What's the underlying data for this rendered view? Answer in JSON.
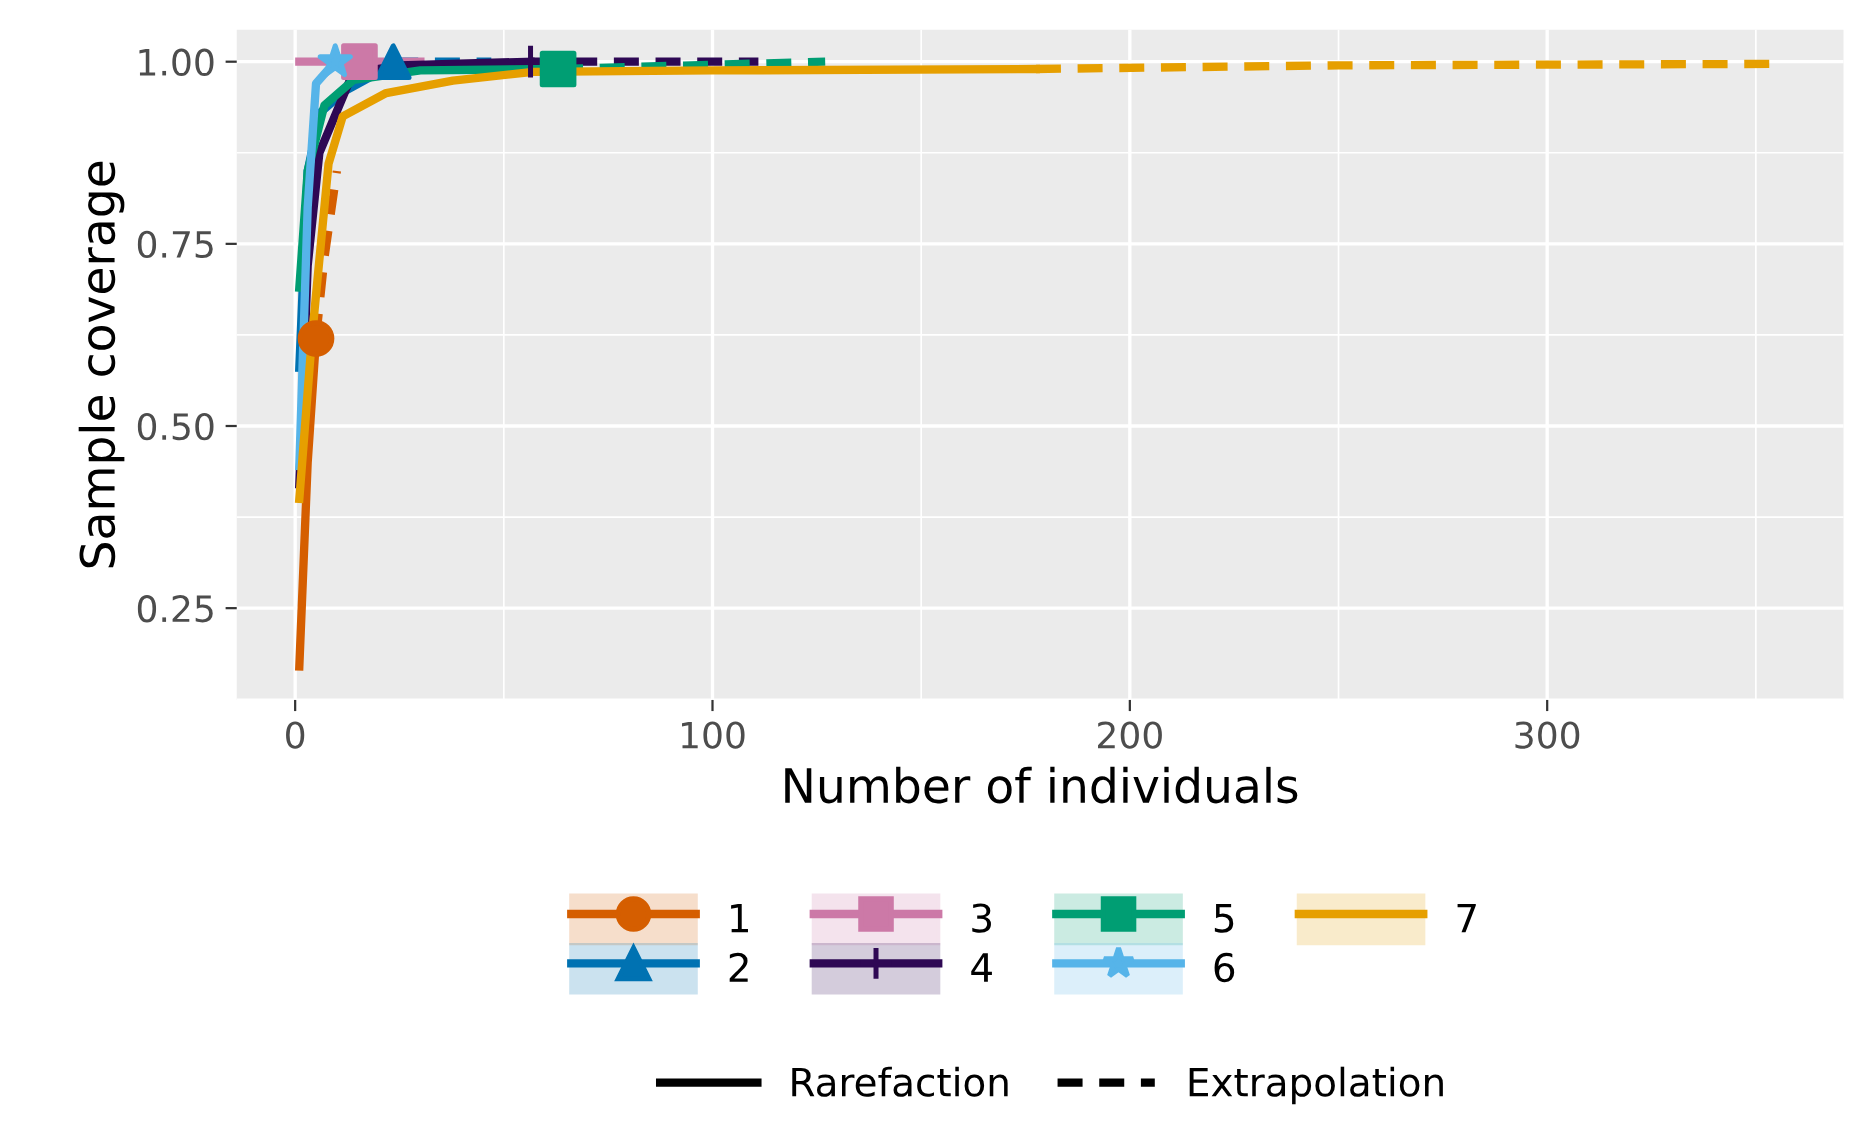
{
  "chart_data": {
    "type": "line",
    "xlabel": "Number of individuals",
    "ylabel": "Sample coverage",
    "xlim": [
      -14,
      371
    ],
    "ylim": [
      0.124,
      1.044
    ],
    "xticks": [
      0,
      100,
      200,
      300
    ],
    "yticks": [
      0.25,
      {
        "value": 0.5,
        "label": "0.50"
      },
      0.75,
      {
        "value": 1.0,
        "label": "1.00"
      }
    ],
    "grid": true,
    "legend": "bottom",
    "series": [
      {
        "name": "1",
        "color": "#D55E00",
        "line_style": "solid",
        "x": [
          1,
          3,
          5
        ],
        "values": [
          0.17,
          0.45,
          0.62
        ]
      },
      {
        "type": "scatter",
        "color": "#D55E00",
        "marker": "circle",
        "x": [
          5
        ],
        "values": [
          0.62
        ]
      },
      {
        "color": "#D55E00",
        "line_style": "dashed",
        "x": [
          5,
          7,
          10
        ],
        "values": [
          0.62,
          0.73,
          0.85
        ]
      },
      {
        "name": "2",
        "color": "#0072B2",
        "line_style": "solid",
        "x": [
          1,
          3,
          6,
          12,
          20,
          23.5
        ],
        "values": [
          0.58,
          0.85,
          0.93,
          0.96,
          0.985,
          1.0
        ]
      },
      {
        "type": "scatter",
        "color": "#0072B2",
        "marker": "triangle",
        "x": [
          23.5
        ],
        "values": [
          1.0
        ]
      },
      {
        "color": "#0072B2",
        "line_style": "dashed",
        "x": [
          23.5,
          47
        ],
        "values": [
          1.0,
          1.0
        ]
      },
      {
        "name": "3",
        "color": "#CC79A7",
        "line_style": "solid",
        "x": [
          1,
          15.4
        ],
        "values": [
          1.0,
          1.0
        ]
      },
      {
        "type": "scatter",
        "color": "#CC79A7",
        "marker": "square",
        "x": [
          15.4
        ],
        "values": [
          1.0
        ]
      },
      {
        "color": "#CC79A7",
        "line_style": "dashed",
        "x": [
          15.4,
          31
        ],
        "values": [
          1.0,
          1.0
        ]
      },
      {
        "name": "4",
        "color": "#2E0854",
        "line_style": "solid",
        "x": [
          1,
          3,
          5.8,
          13.8,
          25,
          56.4
        ],
        "values": [
          0.42,
          0.72,
          0.875,
          0.984,
          0.995,
          1.0
        ]
      },
      {
        "type": "scatter",
        "color": "#2E0854",
        "marker": "cross",
        "x": [
          56.4
        ],
        "values": [
          1.0
        ]
      },
      {
        "color": "#2E0854",
        "line_style": "dashed",
        "x": [
          56.4,
          111
        ],
        "values": [
          1.0,
          1.0
        ]
      },
      {
        "name": "5",
        "color": "#009E73",
        "line_style": "solid",
        "x": [
          1,
          3,
          7,
          14,
          30,
          63
        ],
        "values": [
          0.69,
          0.85,
          0.94,
          0.975,
          0.988,
          0.99
        ]
      },
      {
        "type": "scatter",
        "color": "#009E73",
        "marker": "square",
        "x": [
          63
        ],
        "values": [
          0.99
        ]
      },
      {
        "color": "#009E73",
        "line_style": "dashed",
        "x": [
          63,
          127
        ],
        "values": [
          0.99,
          1.0
        ]
      },
      {
        "name": "6",
        "color": "#56B4E9",
        "line_style": "solid",
        "x": [
          1,
          3,
          5,
          9.6
        ],
        "values": [
          0.445,
          0.8,
          0.97,
          1.0
        ]
      },
      {
        "type": "scatter",
        "color": "#56B4E9",
        "marker": "star",
        "x": [
          9.6
        ],
        "values": [
          1.0
        ]
      },
      {
        "name": "7",
        "color": "#E69F00",
        "line_style": "solid",
        "x": [
          1,
          4,
          8,
          11.4,
          21.8,
          37.8,
          57,
          100,
          177.5
        ],
        "values": [
          0.4,
          0.62,
          0.86,
          0.925,
          0.957,
          0.974,
          0.986,
          0.988,
          0.99
        ]
      },
      {
        "color": "#E69F00",
        "line_style": "dashed",
        "x": [
          177.5,
          250,
          354.5
        ],
        "values": [
          0.99,
          0.995,
          0.997
        ]
      },
      {
        "name": "Rarefaction",
        "color": "#000000",
        "line_style": "solid"
      },
      {
        "name": "Extrapolation",
        "color": "#000000",
        "line_style": "dashed"
      }
    ]
  }
}
